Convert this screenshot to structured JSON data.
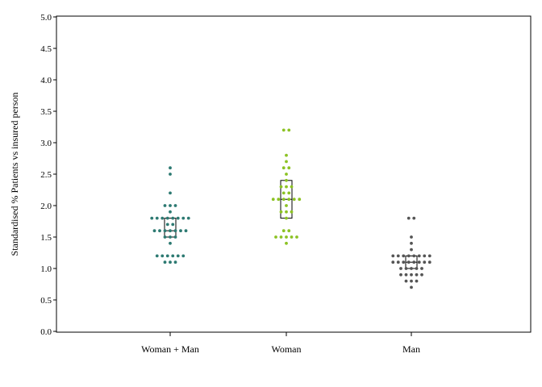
{
  "chart_data": {
    "type": "scatter",
    "subtype": "dot-strip-plot-with-box",
    "title": "",
    "xlabel": "",
    "ylabel": "Standardised % Patients vs insured person",
    "ylim": [
      0,
      5
    ],
    "yticks": [
      "0.0",
      "0.5",
      "1.0",
      "1.5",
      "2.0",
      "2.5",
      "3.0",
      "3.5",
      "4.0",
      "4.5",
      "5.0"
    ],
    "categories": [
      "Woman + Man",
      "Woman",
      "Man"
    ],
    "grid": false,
    "series": [
      {
        "color": "#2d7a72",
        "values": [
          1.1,
          1.1,
          1.1,
          1.2,
          1.2,
          1.2,
          1.2,
          1.2,
          1.2,
          1.4,
          1.5,
          1.5,
          1.5,
          1.6,
          1.6,
          1.6,
          1.6,
          1.6,
          1.6,
          1.6,
          1.7,
          1.7,
          1.8,
          1.8,
          1.8,
          1.8,
          1.8,
          1.8,
          1.8,
          1.8,
          1.9,
          2.0,
          2.0,
          2.0,
          2.2,
          2.5,
          2.6
        ],
        "box": {
          "q1": 1.5,
          "median": 1.6,
          "q3": 1.8
        }
      },
      {
        "color": "#8cc224",
        "values": [
          1.4,
          1.5,
          1.5,
          1.5,
          1.5,
          1.5,
          1.6,
          1.6,
          1.8,
          1.9,
          1.9,
          1.9,
          2.0,
          2.1,
          2.1,
          2.1,
          2.1,
          2.1,
          2.1,
          2.2,
          2.2,
          2.3,
          2.3,
          2.3,
          2.4,
          2.5,
          2.6,
          2.6,
          2.7,
          2.8,
          3.2,
          3.2
        ],
        "box": {
          "q1": 1.8,
          "median": 2.1,
          "q3": 2.4
        }
      },
      {
        "color": "#555555",
        "values": [
          0.7,
          0.8,
          0.8,
          0.8,
          0.9,
          0.9,
          0.9,
          0.9,
          0.9,
          1.0,
          1.0,
          1.0,
          1.0,
          1.0,
          1.1,
          1.1,
          1.1,
          1.1,
          1.1,
          1.1,
          1.1,
          1.1,
          1.2,
          1.2,
          1.2,
          1.2,
          1.2,
          1.2,
          1.2,
          1.2,
          1.3,
          1.4,
          1.5,
          1.8,
          1.8
        ],
        "box": {
          "q1": 1.0,
          "median": 1.1,
          "q3": 1.2
        }
      }
    ]
  }
}
